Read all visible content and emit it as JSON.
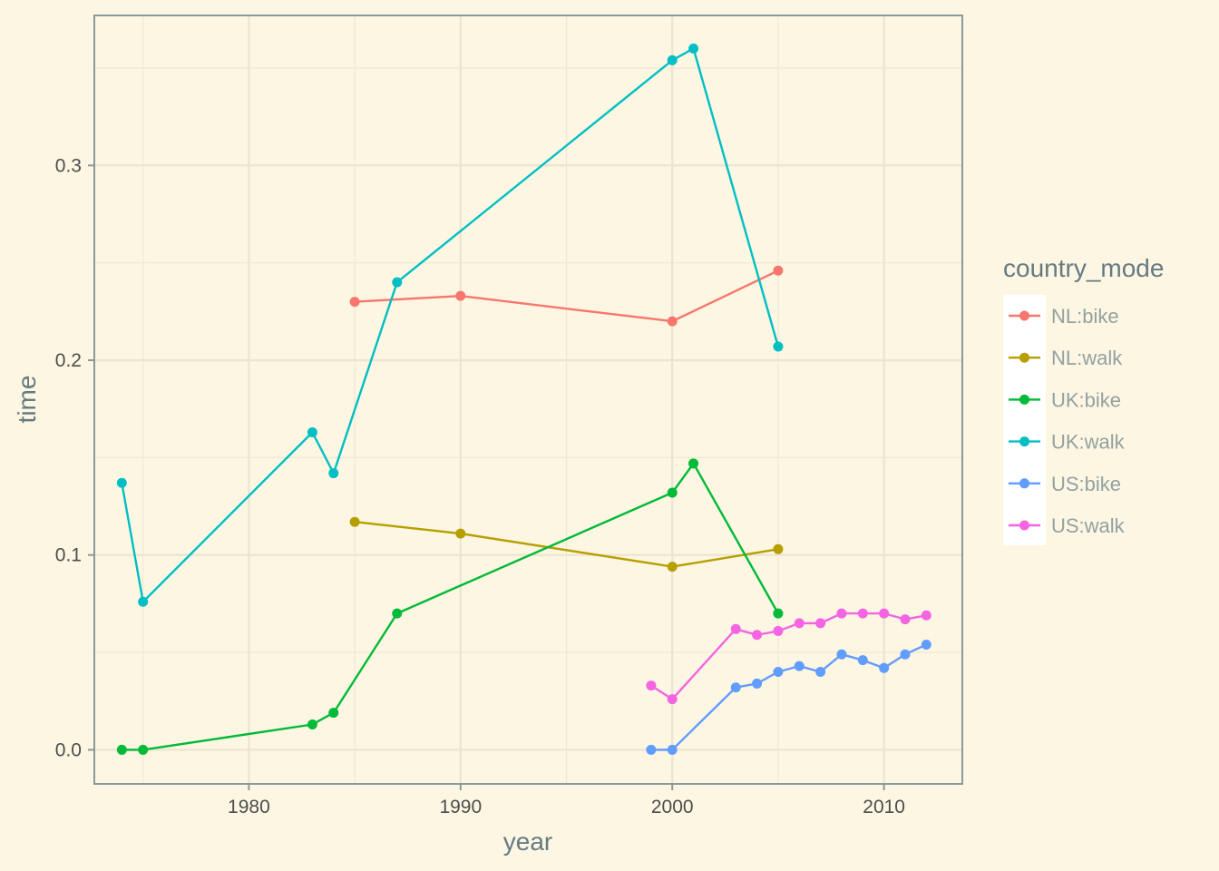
{
  "chart_data": {
    "type": "line",
    "xlabel": "year",
    "ylabel": "time",
    "xlim": [
      1972.7,
      2013.7
    ],
    "ylim": [
      -0.0175,
      0.377
    ],
    "x_ticks": [
      1980,
      1990,
      2000,
      2010
    ],
    "x_tick_labels": [
      "1980",
      "1990",
      "2000",
      "2010"
    ],
    "y_ticks": [
      0.0,
      0.1,
      0.2,
      0.3
    ],
    "y_tick_labels": [
      "0.0",
      "0.1",
      "0.2",
      "0.3"
    ],
    "grid": true,
    "legend": {
      "title": "country_mode",
      "position": "right"
    },
    "series": [
      {
        "name": "NL:bike",
        "color": "#f8766d",
        "points": [
          [
            1985,
            0.23
          ],
          [
            1990,
            0.233
          ],
          [
            2000,
            0.22
          ],
          [
            2005,
            0.246
          ]
        ]
      },
      {
        "name": "NL:walk",
        "color": "#b79f00",
        "points": [
          [
            1985,
            0.117
          ],
          [
            1990,
            0.111
          ],
          [
            2000,
            0.094
          ],
          [
            2005,
            0.103
          ]
        ]
      },
      {
        "name": "UK:bike",
        "color": "#00ba38",
        "points": [
          [
            1974,
            0.0
          ],
          [
            1975,
            0.0
          ],
          [
            1983,
            0.013
          ],
          [
            1984,
            0.019
          ],
          [
            1987,
            0.07
          ],
          [
            2000,
            0.132
          ],
          [
            2001,
            0.147
          ],
          [
            2005,
            0.07
          ]
        ]
      },
      {
        "name": "UK:walk",
        "color": "#00bfc4",
        "points": [
          [
            1974,
            0.137
          ],
          [
            1975,
            0.076
          ],
          [
            1983,
            0.163
          ],
          [
            1984,
            0.142
          ],
          [
            1987,
            0.24
          ],
          [
            2000,
            0.354
          ],
          [
            2001,
            0.36
          ],
          [
            2005,
            0.207
          ]
        ]
      },
      {
        "name": "US:bike",
        "color": "#619cff",
        "points": [
          [
            1999,
            0.0
          ],
          [
            2000,
            0.0
          ],
          [
            2003,
            0.032
          ],
          [
            2004,
            0.034
          ],
          [
            2005,
            0.04
          ],
          [
            2006,
            0.043
          ],
          [
            2007,
            0.04
          ],
          [
            2008,
            0.049
          ],
          [
            2009,
            0.046
          ],
          [
            2010,
            0.042
          ],
          [
            2011,
            0.049
          ],
          [
            2012,
            0.054
          ]
        ]
      },
      {
        "name": "US:walk",
        "color": "#f564e3",
        "points": [
          [
            1999,
            0.033
          ],
          [
            2000,
            0.026
          ],
          [
            2003,
            0.062
          ],
          [
            2004,
            0.059
          ],
          [
            2005,
            0.061
          ],
          [
            2006,
            0.065
          ],
          [
            2007,
            0.065
          ],
          [
            2008,
            0.07
          ],
          [
            2009,
            0.07
          ],
          [
            2010,
            0.07
          ],
          [
            2011,
            0.067
          ],
          [
            2012,
            0.069
          ]
        ]
      }
    ]
  }
}
